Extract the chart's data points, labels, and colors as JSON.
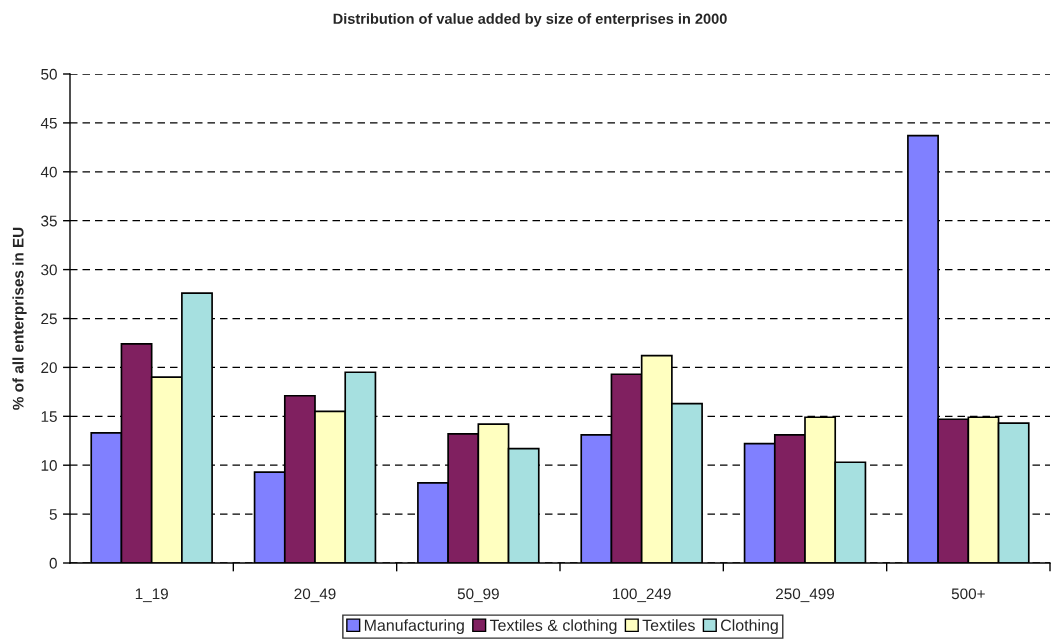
{
  "chart_data": {
    "type": "bar",
    "title": "Distribution of value added by size of enterprises in 2000",
    "ylabel": "% of all enterprises in EU",
    "categories": [
      "1_19",
      "20_49",
      "50_99",
      "100_249",
      "250_499",
      "500+"
    ],
    "series": [
      {
        "name": "Manufacturing",
        "color": "#8080ff",
        "values": [
          13.3,
          9.3,
          8.2,
          13.1,
          12.2,
          43.7
        ]
      },
      {
        "name": "Textiles & clothing",
        "color": "#802060",
        "values": [
          22.4,
          17.1,
          13.2,
          19.3,
          13.1,
          14.7
        ]
      },
      {
        "name": "Textiles",
        "color": "#ffffc0",
        "values": [
          19.0,
          15.5,
          14.2,
          21.2,
          14.9,
          14.9
        ]
      },
      {
        "name": "Clothing",
        "color": "#a6e0e0",
        "values": [
          27.6,
          19.5,
          11.7,
          16.3,
          10.3,
          14.3
        ]
      }
    ],
    "ylim": [
      0,
      50
    ],
    "yticks": [
      0,
      5,
      10,
      15,
      20,
      25,
      30,
      35,
      40,
      45,
      50
    ],
    "grid": "y",
    "legend": "bottom"
  }
}
